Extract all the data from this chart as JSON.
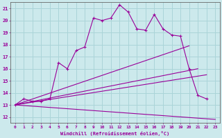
{
  "bg_color": "#cce9ec",
  "grid_color": "#aad4d8",
  "line_color": "#990099",
  "xlabel": "Windchill (Refroidissement éolien,°C)",
  "xlim": [
    -0.5,
    23.5
  ],
  "ylim": [
    11.5,
    21.5
  ],
  "yticks": [
    12,
    13,
    14,
    15,
    16,
    17,
    18,
    19,
    20,
    21
  ],
  "xticks": [
    0,
    1,
    2,
    3,
    4,
    5,
    6,
    7,
    8,
    9,
    10,
    11,
    12,
    13,
    14,
    15,
    16,
    17,
    18,
    19,
    20,
    21,
    22,
    23
  ],
  "line1_x": [
    0,
    1,
    2,
    3,
    4,
    5,
    6,
    7,
    8,
    9,
    10,
    11,
    12,
    13,
    14,
    15,
    16,
    17,
    18,
    19,
    20,
    21,
    22
  ],
  "line1_y": [
    13.0,
    13.5,
    13.3,
    13.3,
    13.5,
    16.5,
    16.0,
    17.5,
    17.8,
    20.2,
    20.0,
    20.2,
    21.3,
    20.7,
    19.3,
    19.2,
    20.5,
    19.3,
    18.8,
    18.7,
    16.0,
    13.8,
    13.5
  ],
  "line2_x": [
    0,
    20
  ],
  "line2_y": [
    13.0,
    17.9
  ],
  "line3_x": [
    0,
    21
  ],
  "line3_y": [
    13.0,
    16.0
  ],
  "line4_x": [
    0,
    22
  ],
  "line4_y": [
    13.0,
    15.5
  ],
  "line5_x": [
    0,
    23
  ],
  "line5_y": [
    13.0,
    11.8
  ]
}
